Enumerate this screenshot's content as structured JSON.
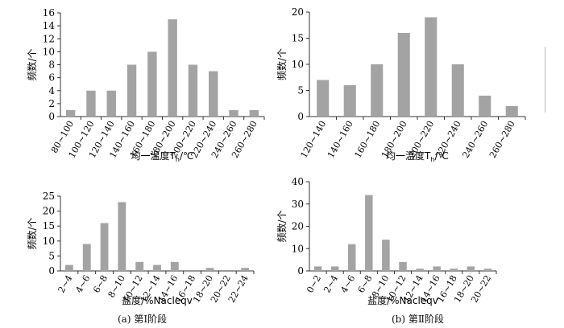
{
  "chart_data": [
    {
      "type": "bar",
      "categories": [
        "80~100",
        "100~120",
        "120~140",
        "140~160",
        "160~180",
        "180~200",
        "200~220",
        "220~240",
        "240~260",
        "260~280"
      ],
      "values": [
        1,
        4,
        4,
        8,
        10,
        15,
        8,
        7,
        1,
        1
      ],
      "xlabel": "均一温度T",
      "xlabel_sub": "h",
      "xlabel_unit": "/℃",
      "ylabel": "频数/个",
      "ylim": [
        0,
        16
      ],
      "yticks": [
        0,
        2,
        4,
        6,
        8,
        10,
        12,
        14,
        16
      ],
      "bar_color": "#a3a3a3",
      "grid": false
    },
    {
      "type": "bar",
      "categories": [
        "120~140",
        "140~160",
        "160~180",
        "180~200",
        "200~220",
        "220~240",
        "240~260",
        "260~280"
      ],
      "values": [
        7,
        6,
        10,
        16,
        19,
        10,
        4,
        2
      ],
      "xlabel": "均一温度T",
      "xlabel_sub": "h",
      "xlabel_unit": "/℃",
      "ylabel": "频数/个",
      "ylim": [
        0,
        20
      ],
      "yticks": [
        0,
        5,
        10,
        15,
        20
      ],
      "bar_color": "#a3a3a3",
      "grid": false
    },
    {
      "type": "bar",
      "categories": [
        "2~4",
        "4~6",
        "6~8",
        "8~10",
        "10~12",
        "12~14",
        "14~16",
        "16~18",
        "18~20",
        "20~22",
        "22~24"
      ],
      "values": [
        2,
        9,
        16,
        23,
        3,
        2,
        3,
        0,
        1,
        0,
        1
      ],
      "xlabel": "盐度/%Nacleqv",
      "ylabel": "频数/个",
      "ylim": [
        0,
        25
      ],
      "yticks": [
        0,
        5,
        10,
        15,
        20,
        25
      ],
      "bar_color": "#a3a3a3",
      "grid": false
    },
    {
      "type": "bar",
      "categories": [
        "0~2",
        "2~4",
        "4~6",
        "6~8",
        "8~10",
        "10~12",
        "12~14",
        "14~16",
        "16~18",
        "18~20",
        "20~22"
      ],
      "values": [
        2,
        2,
        12,
        34,
        14,
        4,
        1,
        2,
        1,
        2,
        1
      ],
      "xlabel": "盐度/%Nacleqv",
      "ylabel": "频数/个",
      "ylim": [
        0,
        40
      ],
      "yticks": [
        0,
        10,
        20,
        30,
        40
      ],
      "bar_color": "#a3a3a3",
      "grid": false
    }
  ],
  "captions": {
    "left": "(a) 第Ⅰ阶段",
    "right": "(b) 第Ⅱ阶段"
  }
}
